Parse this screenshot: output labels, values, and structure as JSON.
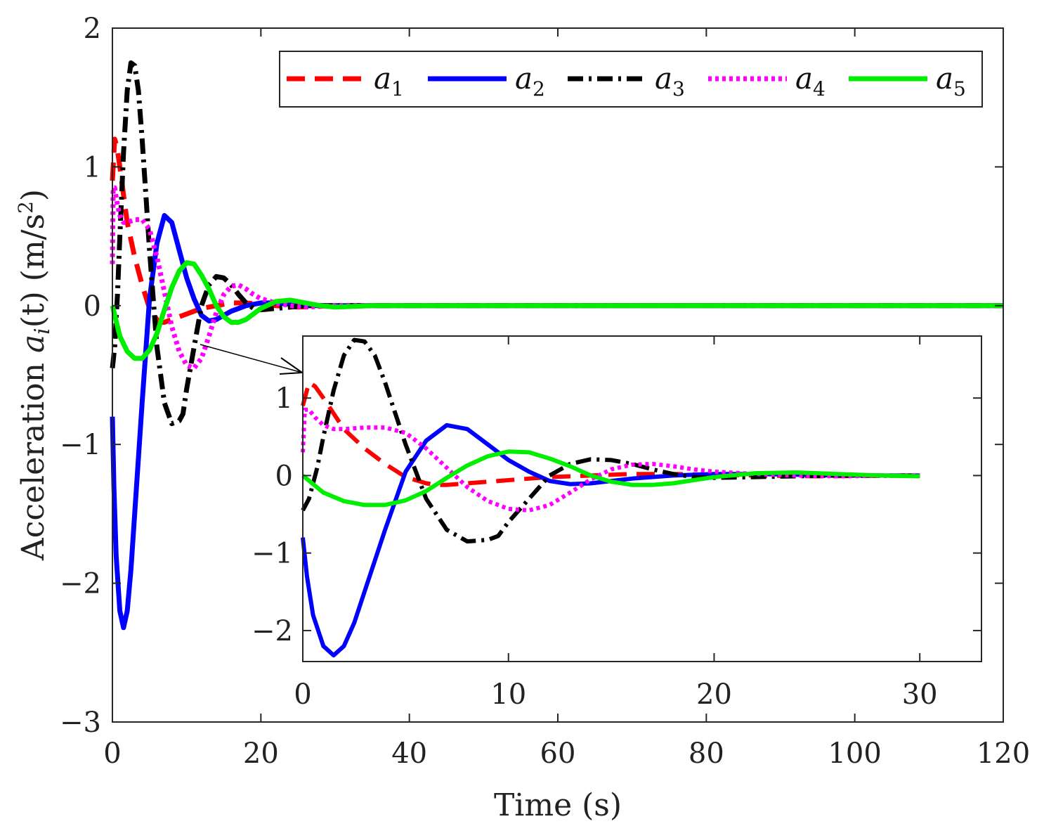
{
  "chart_data": {
    "type": "line",
    "xlabel": "Time (s)",
    "ylabel": "Acceleration a_i(t) (m/s²)",
    "ylabel_parts": {
      "prefix": "Acceleration ",
      "var": "a",
      "sub": "i",
      "arg": "(t)",
      "units": " (m/s",
      "sup": "2",
      "close": ")"
    },
    "xlim": [
      0,
      120
    ],
    "ylim": [
      -3,
      2
    ],
    "xticks": [
      0,
      20,
      40,
      60,
      80,
      100,
      120
    ],
    "yticks": [
      -3,
      -2,
      -1,
      0,
      1,
      2
    ],
    "xtick_labels": [
      "0",
      "20",
      "40",
      "60",
      "80",
      "100",
      "120"
    ],
    "ytick_labels": [
      "−3",
      "−2",
      "−1",
      "0",
      "1",
      "2"
    ],
    "grid": false,
    "legend_position": "top-right",
    "series": [
      {
        "name": "a1",
        "var": "a",
        "sub": "1",
        "color": "#ff0000",
        "style": "dashed",
        "x": [
          0,
          0.3,
          0.6,
          1.0,
          1.5,
          2.0,
          3.0,
          4.0,
          5.0,
          6.0,
          6.5,
          7.0,
          8.0,
          10.0,
          12.0,
          14.0,
          16.0,
          18.0,
          20.0,
          22.0,
          25.0,
          30.0,
          40.0,
          120.0
        ],
        "y": [
          0.9,
          1.2,
          1.15,
          1.0,
          0.8,
          0.6,
          0.35,
          0.15,
          -0.02,
          -0.1,
          -0.12,
          -0.12,
          -0.1,
          -0.06,
          -0.02,
          0.0,
          0.02,
          0.02,
          0.01,
          0.0,
          -0.01,
          0.0,
          0.0,
          0.0
        ]
      },
      {
        "name": "a2",
        "var": "a",
        "sub": "2",
        "color": "#0000ff",
        "style": "solid",
        "x": [
          0,
          0.2,
          0.5,
          1.0,
          1.5,
          2.0,
          2.5,
          3.0,
          4.0,
          5.0,
          6.0,
          7.0,
          8.0,
          9.0,
          10.0,
          11.0,
          12.0,
          13.0,
          14.0,
          15.0,
          16.0,
          18.0,
          20.0,
          22.0,
          24.0,
          26.0,
          30.0,
          40.0,
          120.0
        ],
        "y": [
          -0.8,
          -1.3,
          -1.8,
          -2.2,
          -2.32,
          -2.2,
          -1.9,
          -1.5,
          -0.7,
          0.05,
          0.45,
          0.65,
          0.6,
          0.4,
          0.2,
          0.05,
          -0.07,
          -0.11,
          -0.1,
          -0.07,
          -0.04,
          0.0,
          0.02,
          0.02,
          0.01,
          0.0,
          0.0,
          0.0,
          0.0
        ]
      },
      {
        "name": "a3",
        "var": "a",
        "sub": "3",
        "color": "#000000",
        "style": "dashdot",
        "x": [
          0,
          0.3,
          0.7,
          1.0,
          1.5,
          2.0,
          2.5,
          3.0,
          3.5,
          4.0,
          4.5,
          5.0,
          6.0,
          7.0,
          8.0,
          9.0,
          9.5,
          10.0,
          11.0,
          12.0,
          13.0,
          14.0,
          15.0,
          16.0,
          17.0,
          18.0,
          19.0,
          20.0,
          22.0,
          24.0,
          26.0,
          30.0,
          40.0,
          120.0
        ],
        "y": [
          -0.45,
          -0.3,
          0.1,
          0.5,
          1.1,
          1.55,
          1.75,
          1.73,
          1.55,
          1.2,
          0.8,
          0.4,
          -0.3,
          -0.7,
          -0.85,
          -0.83,
          -0.78,
          -0.6,
          -0.3,
          0.0,
          0.15,
          0.21,
          0.2,
          0.15,
          0.08,
          0.02,
          -0.02,
          -0.03,
          -0.02,
          -0.01,
          0.0,
          0.0,
          0.0,
          0.0
        ]
      },
      {
        "name": "a4",
        "var": "a",
        "sub": "4",
        "color": "#ff00ff",
        "style": "dotted",
        "x": [
          0,
          0.1,
          0.3,
          0.6,
          1.0,
          1.5,
          2.0,
          3.0,
          4.0,
          5.0,
          6.0,
          7.0,
          8.0,
          9.0,
          10.0,
          11.0,
          12.0,
          13.0,
          14.0,
          15.0,
          16.0,
          17.0,
          18.0,
          19.0,
          20.0,
          22.0,
          24.0,
          26.0,
          30.0,
          40.0,
          120.0
        ],
        "y": [
          0.3,
          0.85,
          0.85,
          0.75,
          0.65,
          0.6,
          0.6,
          0.62,
          0.62,
          0.55,
          0.35,
          0.1,
          -0.15,
          -0.33,
          -0.43,
          -0.45,
          -0.38,
          -0.22,
          -0.05,
          0.08,
          0.14,
          0.15,
          0.12,
          0.08,
          0.05,
          0.02,
          0.0,
          -0.01,
          0.0,
          0.0,
          0.0
        ]
      },
      {
        "name": "a5",
        "var": "a",
        "sub": "5",
        "color": "#00ee00",
        "style": "solid",
        "x": [
          0,
          1.0,
          2.0,
          3.0,
          4.0,
          5.0,
          6.0,
          7.0,
          8.0,
          9.0,
          10.0,
          11.0,
          12.0,
          13.0,
          14.0,
          15.0,
          16.0,
          17.0,
          18.0,
          19.0,
          20.0,
          22.0,
          24.0,
          26.0,
          28.0,
          30.0,
          35.0,
          40.0,
          120.0
        ],
        "y": [
          0.0,
          -0.22,
          -0.33,
          -0.38,
          -0.38,
          -0.32,
          -0.2,
          -0.03,
          0.13,
          0.25,
          0.31,
          0.3,
          0.22,
          0.12,
          0.0,
          -0.08,
          -0.12,
          -0.12,
          -0.1,
          -0.06,
          -0.02,
          0.03,
          0.04,
          0.02,
          0.0,
          -0.01,
          0.0,
          0.0,
          0.0
        ]
      }
    ],
    "inset": {
      "xlim": [
        0,
        33
      ],
      "ylim": [
        -2.4,
        1.8
      ],
      "xticks": [
        0,
        10,
        20,
        30
      ],
      "yticks": [
        -2,
        -1,
        0,
        1
      ],
      "xtick_labels": [
        "0",
        "10",
        "20",
        "30"
      ],
      "ytick_labels": [
        "−2",
        "−1",
        "0",
        "1"
      ],
      "annotation": "arrow from zoom region in main plot to inset"
    }
  }
}
